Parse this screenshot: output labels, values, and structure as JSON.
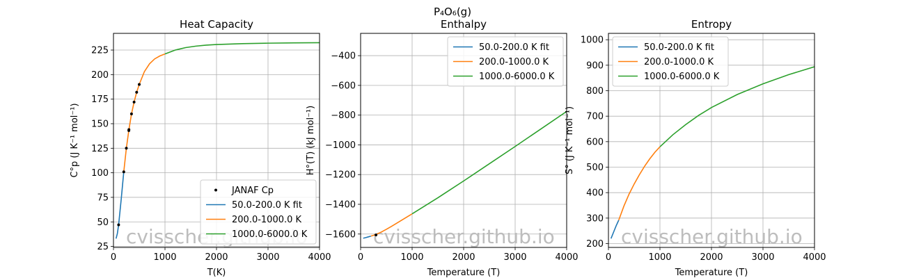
{
  "suptitle": "P₄O₆(g)",
  "watermark": "cvisscher.github.io",
  "colors": {
    "series_low": "#1f77b4",
    "series_mid": "#ff7f0e",
    "series_high": "#2ca02c",
    "points": "#000000",
    "grid": "#b0b0b0",
    "watermark": "#bdbdbd"
  },
  "chart_data": [
    {
      "type": "line",
      "title": "Heat Capacity",
      "xlabel": "T(K)",
      "ylabel": "C°p (J K⁻¹ mol⁻¹)",
      "xlim": [
        0,
        4000
      ],
      "ylim": [
        24,
        242
      ],
      "xticks": [
        0,
        1000,
        2000,
        3000,
        4000
      ],
      "yticks": [
        25,
        50,
        75,
        100,
        125,
        150,
        175,
        200,
        225
      ],
      "grid": true,
      "legend_position": "lower-right",
      "points": {
        "name": "JANAF Cp",
        "x": [
          100,
          200,
          250,
          298.15,
          300,
          350,
          400,
          450,
          500
        ],
        "y": [
          47,
          101,
          125,
          143,
          144,
          160,
          172,
          182,
          190
        ]
      },
      "series": [
        {
          "name": "50.0-200.0 K fit",
          "x": [
            50,
            75,
            100,
            125,
            150,
            175,
            200
          ],
          "y": [
            33,
            38,
            47,
            60,
            73,
            87,
            101
          ]
        },
        {
          "name": "200.0-1000.0 K",
          "x": [
            200,
            250,
            300,
            350,
            400,
            450,
            500,
            600,
            700,
            800,
            900,
            1000
          ],
          "y": [
            101,
            125,
            144,
            160,
            172,
            182,
            190,
            203,
            211,
            216,
            219,
            221
          ]
        },
        {
          "name": "1000.0-6000.0 K",
          "x": [
            1000,
            1200,
            1400,
            1600,
            1800,
            2000,
            2500,
            3000,
            3500,
            4000
          ],
          "y": [
            221,
            225,
            227.5,
            229,
            230,
            230.6,
            231.5,
            232,
            232.3,
            232.5
          ]
        }
      ]
    },
    {
      "type": "line",
      "title": "Enthalpy",
      "xlabel": "Temperature (T)",
      "ylabel": "H°(T) (kJ mol⁻¹)",
      "xlim": [
        0,
        4000
      ],
      "ylim": [
        -1690,
        -250
      ],
      "xticks": [
        0,
        1000,
        2000,
        3000,
        4000
      ],
      "yticks": [
        -1600,
        -1400,
        -1200,
        -1000,
        -800,
        -600,
        -400
      ],
      "grid": true,
      "legend_position": "top-right",
      "points": {
        "name": "",
        "x": [
          298.15
        ],
        "y": [
          -1606
        ]
      },
      "series": [
        {
          "name": "50.0-200.0 K fit",
          "x": [
            50,
            100,
            150,
            200
          ],
          "y": [
            -1628,
            -1624,
            -1619,
            -1614
          ]
        },
        {
          "name": "200.0-1000.0 K",
          "x": [
            200,
            300,
            400,
            500,
            600,
            700,
            800,
            900,
            1000
          ],
          "y": [
            -1614,
            -1603,
            -1587,
            -1568,
            -1548,
            -1527,
            -1506,
            -1485,
            -1464
          ]
        },
        {
          "name": "1000.0-6000.0 K",
          "x": [
            1000,
            1500,
            2000,
            2500,
            3000,
            3500,
            4000
          ],
          "y": [
            -1464,
            -1356,
            -1243,
            -1127,
            -1011,
            -893,
            -775
          ]
        }
      ]
    },
    {
      "type": "line",
      "title": "Entropy",
      "xlabel": "Temperature (T)",
      "ylabel": "S° (J K⁻¹ mol⁻¹)",
      "xlim": [
        0,
        4000
      ],
      "ylim": [
        185,
        1025
      ],
      "xticks": [
        0,
        1000,
        2000,
        3000,
        4000
      ],
      "yticks": [
        200,
        300,
        400,
        500,
        600,
        700,
        800,
        900,
        1000
      ],
      "grid": true,
      "legend_position": "top-left",
      "series": [
        {
          "name": "50.0-200.0 K fit",
          "x": [
            50,
            100,
            150,
            200
          ],
          "y": [
            220,
            245,
            270,
            292
          ]
        },
        {
          "name": "200.0-1000.0 K",
          "x": [
            200,
            300,
            400,
            500,
            600,
            700,
            800,
            900,
            1000
          ],
          "y": [
            292,
            347,
            394,
            434,
            470,
            503,
            532,
            558,
            580
          ]
        },
        {
          "name": "1000.0-6000.0 K",
          "x": [
            1000,
            1250,
            1500,
            1750,
            2000,
            2500,
            3000,
            3500,
            4000
          ],
          "y": [
            580,
            627,
            667,
            703,
            734,
            785,
            827,
            863,
            894
          ]
        }
      ]
    }
  ]
}
